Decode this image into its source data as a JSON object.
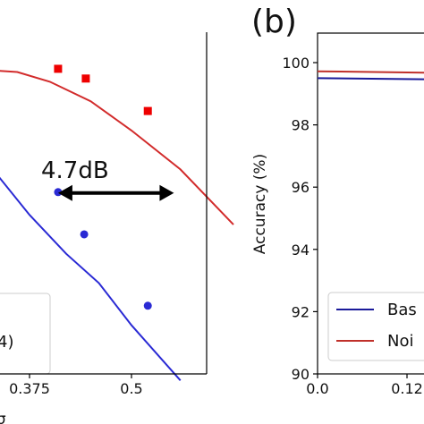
{
  "chart_data": [
    {
      "type": "line",
      "panel": "a",
      "xlabel": "e σ",
      "xlim": [
        0.25,
        0.625
      ],
      "ylim": [
        90,
        100.5
      ],
      "x_ticks": [
        {
          "value": 0.375,
          "label": "0.375"
        },
        {
          "value": 0.5,
          "label": "0.5"
        }
      ],
      "series": [
        {
          "color": "#2a2ad4",
          "x": [
            0.25,
            0.3,
            0.33,
            0.375,
            0.42,
            0.46,
            0.5,
            0.56
          ],
          "y": [
            98.9,
            97.6,
            96.3,
            94.9,
            93.7,
            92.8,
            91.5,
            89.8
          ]
        },
        {
          "color": "#d22b2b",
          "x": [
            0.25,
            0.3,
            0.36,
            0.4,
            0.45,
            0.5,
            0.56,
            0.625
          ],
          "y": [
            99.5,
            99.4,
            99.3,
            99.0,
            98.4,
            97.5,
            96.3,
            94.6
          ]
        }
      ],
      "points": [
        {
          "color": "#2a2ad4",
          "marker": "circle",
          "x": [
            0.41,
            0.442,
            0.52
          ],
          "y": [
            95.6,
            94.3,
            92.1
          ]
        },
        {
          "color": "#ee0000",
          "marker": "square",
          "x": [
            0.41,
            0.444,
            0.52
          ],
          "y": [
            99.4,
            99.1,
            98.1
          ]
        }
      ],
      "annotation": {
        "text": "4.7dB",
        "x_from": 0.41,
        "x_to": 0.552,
        "y": 95.6
      },
      "legend_fragments": [
        "4)"
      ]
    },
    {
      "type": "line",
      "panel": "b",
      "panel_label": "(b)",
      "ylabel": "Accuracy (%)",
      "ylim": [
        90,
        101
      ],
      "y_ticks": [
        90,
        92,
        94,
        96,
        98,
        100
      ],
      "x_ticks": [
        {
          "value": 0.0,
          "label": "0.0"
        },
        {
          "value": 0.12,
          "label": "0.12"
        }
      ],
      "xlim": [
        0,
        0.2
      ],
      "series": [
        {
          "name": "Bas",
          "color": "#1a1a9a",
          "x": [
            0,
            0.2
          ],
          "y": [
            99.5,
            99.45
          ]
        },
        {
          "name": "Noi",
          "color": "#c0302a",
          "x": [
            0,
            0.2
          ],
          "y": [
            99.72,
            99.66
          ]
        }
      ]
    }
  ]
}
